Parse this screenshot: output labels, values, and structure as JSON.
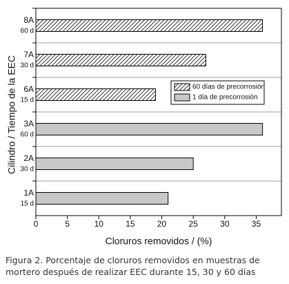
{
  "chart_data": {
    "type": "hbar",
    "categories": [
      "8A",
      "7A",
      "6A",
      "3A",
      "2A",
      "1A"
    ],
    "time_labels": [
      "60 d",
      "30 d",
      "15 d",
      "60 d",
      "30 d",
      "15 d"
    ],
    "series": [
      {
        "name": "60 días de precorrosión",
        "color": "#333333",
        "pattern": "hatch",
        "values": [
          36,
          27,
          19,
          null,
          null,
          null
        ]
      },
      {
        "name": "1 día de precorrosión",
        "color": "#c8c8c8",
        "pattern": "solid",
        "values": [
          null,
          null,
          null,
          36,
          25,
          21
        ]
      }
    ],
    "xlim": [
      0,
      39
    ],
    "xticks": [
      0,
      5,
      10,
      15,
      20,
      25,
      30,
      35
    ],
    "xlabel": "Cloruros removidos / (%)",
    "ylabel": "Cilindro / Tiempo de la EEC",
    "grid": true,
    "legend": "upper right",
    "caption": "Figura 2. Porcentaje de cloruros removidos en muestras de mortero después de realizar EEC durante 15, 30 y 60 días"
  }
}
